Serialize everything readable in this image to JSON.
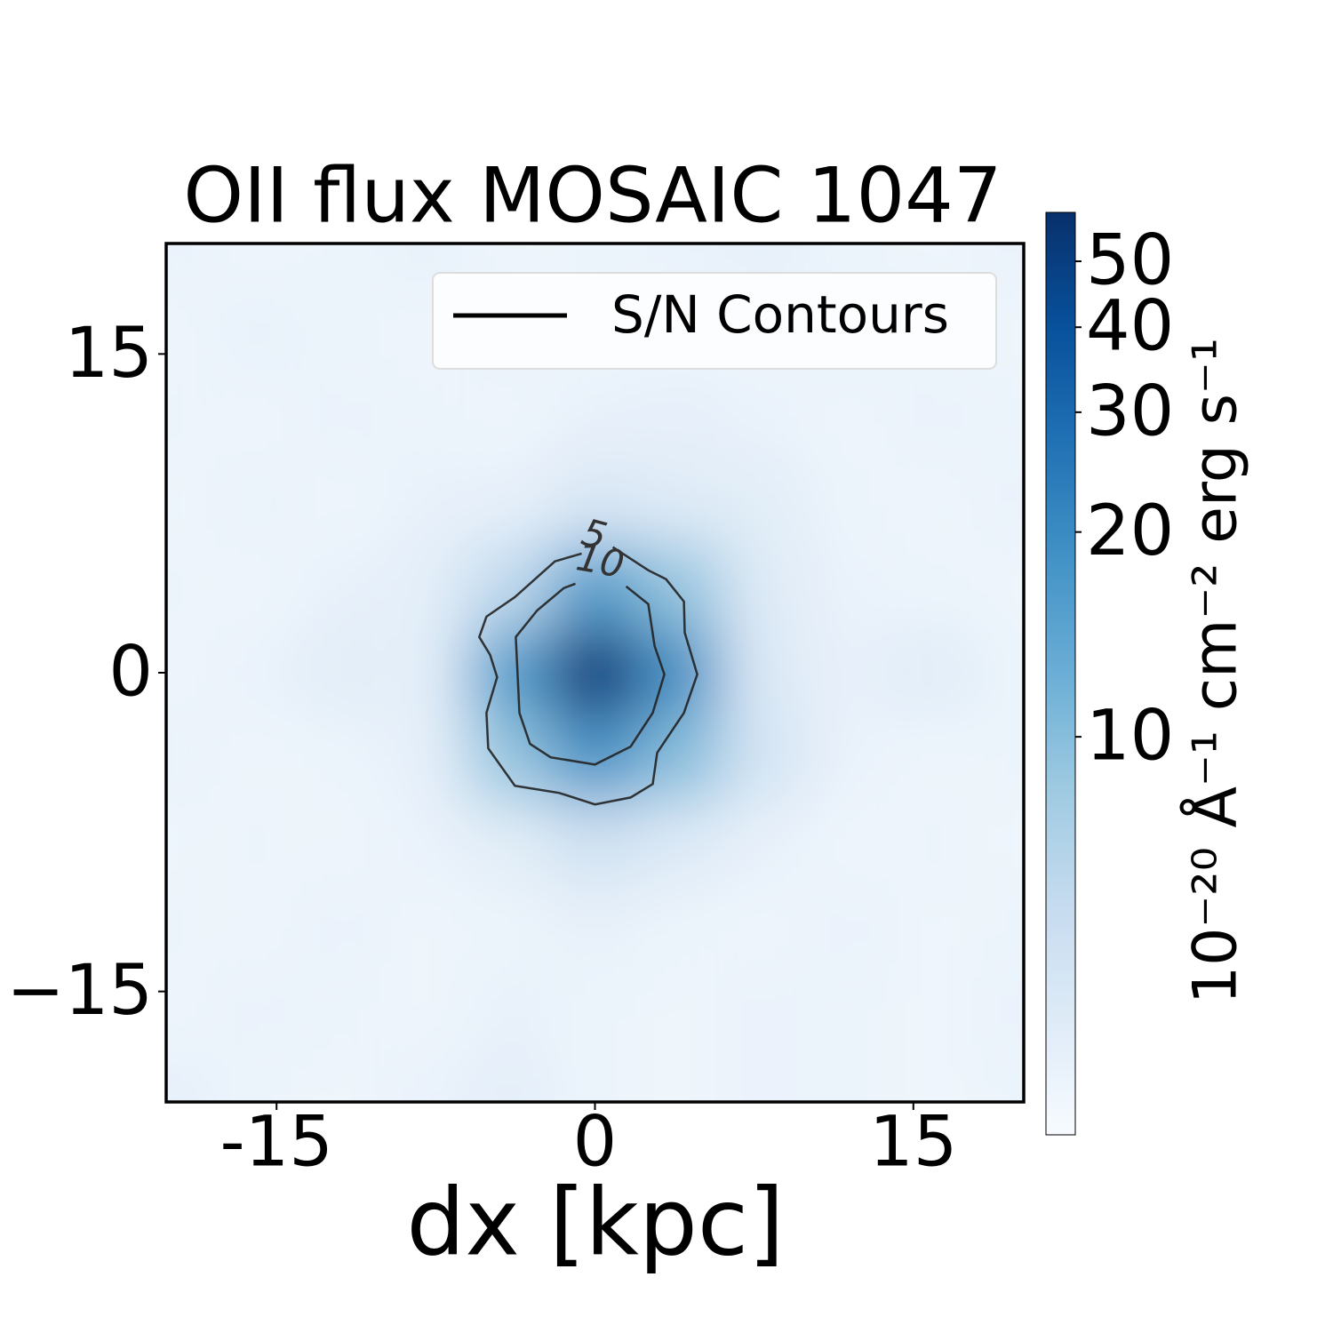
{
  "chart_data": {
    "type": "heatmap",
    "title": "OII flux MOSAIC 1047",
    "xlabel": "dx [kpc]",
    "xlim": [
      -20.2,
      20.2
    ],
    "ylim": [
      -20.2,
      20.2
    ],
    "xticks": [
      -15,
      0,
      15
    ],
    "yticks": [
      {
        "value": -15,
        "label": "−15"
      },
      0,
      15
    ],
    "x": [
      -20,
      -16,
      -12,
      -8,
      -4,
      0,
      4,
      8,
      12,
      16,
      20
    ],
    "y": [
      20,
      16,
      12,
      8,
      4,
      0,
      -4,
      -8,
      -12,
      -16,
      -20
    ],
    "z": [
      [
        3.2,
        3.0,
        3.1,
        3.3,
        3.0,
        3.1,
        3.2,
        3.4,
        3.1,
        3.0,
        3.2
      ],
      [
        3.0,
        3.3,
        3.1,
        3.0,
        3.2,
        3.0,
        3.1,
        3.0,
        3.3,
        3.1,
        3.0
      ],
      [
        3.1,
        3.0,
        3.2,
        3.1,
        3.0,
        3.3,
        3.4,
        3.2,
        3.0,
        3.2,
        3.1
      ],
      [
        3.0,
        3.2,
        3.0,
        3.3,
        3.4,
        4.2,
        3.8,
        3.6,
        3.1,
        3.0,
        3.2
      ],
      [
        3.1,
        3.0,
        3.3,
        3.5,
        6,
        16,
        9,
        3.8,
        3.2,
        3.1,
        3.0
      ],
      [
        3.0,
        3.2,
        3.6,
        3.5,
        16,
        55,
        19,
        4,
        3.3,
        3.7,
        3.1
      ],
      [
        3.2,
        3.0,
        3.1,
        3.4,
        9,
        18,
        10,
        4.5,
        3.2,
        3.0,
        3.1
      ],
      [
        3.0,
        3.1,
        3.0,
        3.2,
        3.6,
        4.8,
        3.9,
        3.3,
        3.0,
        3.1,
        3.0
      ],
      [
        3.1,
        3.0,
        3.2,
        3.0,
        3.1,
        3.3,
        3.1,
        3.0,
        3.2,
        3.0,
        3.1
      ],
      [
        3.0,
        3.2,
        3.1,
        3.0,
        3.3,
        3.1,
        3.0,
        3.2,
        3.1,
        3.0,
        3.2
      ],
      [
        3.4,
        3.1,
        3.0,
        3.2,
        3.5,
        3.1,
        3.0,
        3.2,
        3.1,
        3.0,
        3.1
      ]
    ],
    "colormap": "Blues",
    "log_scale": true,
    "clim": [
      2.6,
      59
    ],
    "colorbar_ticks": [
      10,
      20,
      30,
      40,
      50
    ],
    "colorbar_label": "10⁻²⁰ Å⁻¹ cm⁻² erg s⁻¹",
    "legend_position": "upper right",
    "contours": [
      {
        "name": "S/N Contours",
        "level": 5,
        "color": "#222222",
        "x": [
          0.84,
          2.51,
          3.35,
          4.19,
          4.23,
          4.82,
          4.19,
          2.93,
          2.72,
          1.68,
          0,
          -1.68,
          -3.77,
          -5.03,
          -5.11,
          -4.61,
          -4.94,
          -5.45,
          -5.11,
          -3.77,
          -1.89,
          -0.63
        ],
        "y": [
          5.91,
          4.82,
          4.4,
          3.35,
          1.89,
          -0.08,
          -1.89,
          -3.77,
          -5.24,
          -5.87,
          -6.2,
          -5.66,
          -5.32,
          -3.56,
          -1.89,
          -0.21,
          0.84,
          1.68,
          2.64,
          3.56,
          5.24,
          5.61
        ]
      },
      {
        "level": 10,
        "color": "#222222",
        "x": [
          1.47,
          2.51,
          2.81,
          3.27,
          2.72,
          1.68,
          0,
          -2.09,
          -3.06,
          -3.56,
          -3.64,
          -3.73,
          -2.72,
          -1.47,
          -0.92
        ],
        "y": [
          4.06,
          3.23,
          1.26,
          -0.08,
          -1.89,
          -3.48,
          -4.32,
          -3.98,
          -3.35,
          -1.89,
          -0.21,
          1.68,
          2.93,
          3.98,
          4.19
        ]
      }
    ]
  }
}
